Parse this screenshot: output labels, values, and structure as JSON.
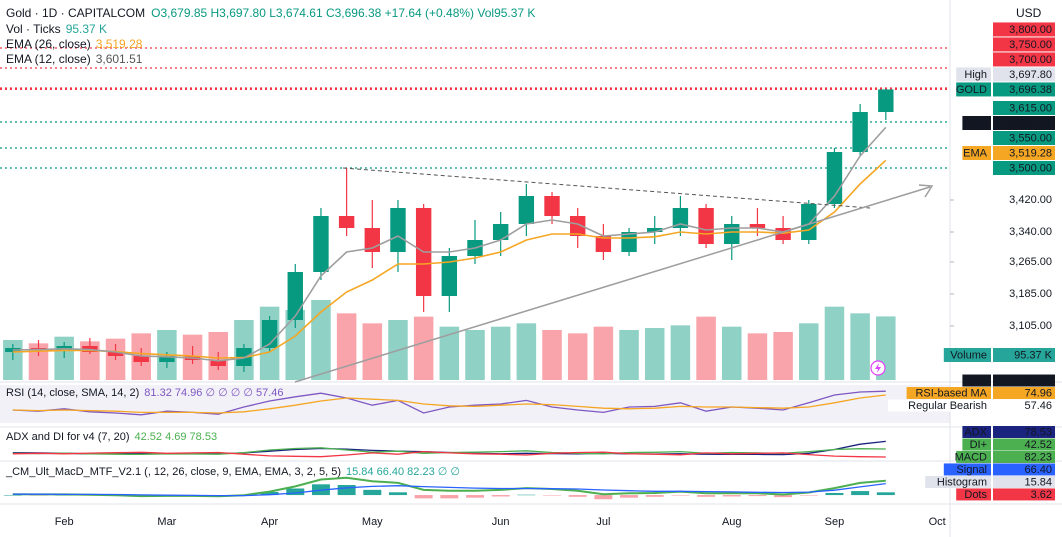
{
  "chart_data": [
    {
      "type": "candlestick",
      "title": "Gold · 1D · CAPITALCOM",
      "ohlc": "O3,679.85 H3,697.80 L3,674.61 C3,696.38 +17.64 (+0.48%) Vol95.37 K",
      "currency": "USD",
      "categories": [
        null,
        null,
        "Feb",
        null,
        null,
        null,
        "Mar",
        null,
        null,
        null,
        "Apr",
        null,
        null,
        null,
        "May",
        null,
        null,
        null,
        null,
        "Jun",
        null,
        null,
        null,
        "Jul",
        null,
        null,
        null,
        null,
        "Aug",
        null,
        null,
        null,
        "Sep",
        null,
        null,
        null,
        "Oct"
      ],
      "open": [
        3040,
        3050,
        3045,
        3055,
        3040,
        3030,
        3015,
        3030,
        3020,
        3005,
        3050,
        3120,
        3240,
        3380,
        3350,
        3290,
        3400,
        3180,
        3280,
        3320,
        3360,
        3430,
        3380,
        3330,
        3290,
        3340,
        3350,
        3400,
        3310,
        3360,
        3350,
        3320,
        3410,
        3540,
        3640,
        null,
        null
      ],
      "high": [
        3060,
        3070,
        3065,
        3075,
        3060,
        3050,
        3040,
        3055,
        3040,
        3060,
        3130,
        3260,
        3400,
        3500,
        3420,
        3420,
        3410,
        3300,
        3370,
        3390,
        3460,
        3440,
        3400,
        3360,
        3350,
        3380,
        3430,
        3410,
        3380,
        3400,
        3380,
        3420,
        3550,
        3660,
        3697.8,
        null,
        null
      ],
      "low": [
        3020,
        3030,
        3025,
        3035,
        3020,
        3005,
        3000,
        3010,
        2995,
        2990,
        3040,
        3100,
        3220,
        3330,
        3250,
        3240,
        3140,
        3140,
        3260,
        3280,
        3330,
        3360,
        3300,
        3270,
        3280,
        3310,
        3330,
        3300,
        3270,
        3330,
        3310,
        3310,
        3400,
        3530,
        3620,
        null,
        null
      ],
      "close": [
        3050,
        3045,
        3055,
        3040,
        3030,
        3015,
        3030,
        3020,
        3005,
        3050,
        3120,
        3240,
        3380,
        3350,
        3290,
        3400,
        3180,
        3280,
        3320,
        3360,
        3430,
        3380,
        3330,
        3290,
        3340,
        3350,
        3400,
        3310,
        3360,
        3350,
        3320,
        3410,
        3540,
        3640,
        3696.38,
        null,
        null
      ],
      "up_color": "#089981",
      "down_color": "#f23645",
      "volume": {
        "name": "Vol · Ticks",
        "values": [
          60,
          55,
          65,
          58,
          62,
          70,
          75,
          68,
          72,
          90,
          110,
          105,
          120,
          100,
          85,
          90,
          95,
          80,
          75,
          80,
          85,
          75,
          70,
          80,
          75,
          78,
          82,
          95,
          80,
          70,
          72,
          85,
          110,
          100,
          95.37,
          null,
          null
        ],
        "badge": {
          "name": "Volume",
          "label": "95.37 K",
          "color": "#26a69a"
        }
      },
      "series": [
        {
          "name": "EMA (26, close)",
          "badge_name": "EMA",
          "color": "#f5a623",
          "values": [
            3040,
            3042,
            3044,
            3044,
            3041,
            3036,
            3033,
            3030,
            3025,
            3026,
            3040,
            3080,
            3140,
            3190,
            3220,
            3260,
            3260,
            3265,
            3275,
            3290,
            3320,
            3335,
            3335,
            3325,
            3325,
            3328,
            3340,
            3335,
            3340,
            3340,
            3337,
            3345,
            3390,
            3460,
            3519.28,
            null,
            null
          ],
          "value_labels": [
            null,
            null,
            null,
            null,
            null,
            null,
            null,
            null,
            null,
            null,
            null,
            null,
            null,
            null,
            null,
            null,
            null,
            null,
            null,
            null,
            null,
            null,
            null,
            null,
            null,
            null,
            null,
            null,
            null,
            null,
            null,
            null,
            null,
            null,
            "3,519.28",
            null,
            null
          ]
        },
        {
          "name": "EMA (12, close)",
          "badge_name": "EMA",
          "color": "#9e9e9e",
          "badge_color": "#131722",
          "values": [
            3045,
            3046,
            3048,
            3046,
            3040,
            3030,
            3028,
            3025,
            3018,
            3025,
            3060,
            3130,
            3230,
            3290,
            3300,
            3330,
            3290,
            3290,
            3300,
            3320,
            3360,
            3370,
            3360,
            3330,
            3335,
            3340,
            3360,
            3345,
            3350,
            3350,
            3340,
            3360,
            3430,
            3530,
            3601.51,
            null,
            null
          ],
          "value_labels": [
            null,
            null,
            null,
            null,
            null,
            null,
            null,
            null,
            null,
            null,
            null,
            null,
            null,
            null,
            null,
            null,
            null,
            null,
            null,
            null,
            null,
            null,
            null,
            null,
            null,
            null,
            null,
            null,
            null,
            null,
            null,
            null,
            null,
            null,
            "3,601.51",
            null,
            null
          ]
        }
      ],
      "price_levels": [
        {
          "value": 3800,
          "label": "3,800.00",
          "color": "#f23645"
        },
        {
          "value": 3750,
          "label": "3,750.00",
          "color": "#f23645"
        },
        {
          "value": 3700,
          "label": "3,700.00",
          "color": "#f23645"
        },
        {
          "name": "High",
          "value": 3697.8,
          "label": "3,697.80",
          "color": "#e0e3eb"
        },
        {
          "name": "GOLD",
          "value": 3696.38,
          "label": "3,696.38",
          "color": "#089981"
        },
        {
          "value": 3615,
          "label": "3,615.00",
          "color": "#089981"
        },
        {
          "value": 3550,
          "label": "3,550.00",
          "color": "#089981"
        },
        {
          "value": 3500,
          "label": "3,500.00",
          "color": "#089981"
        }
      ],
      "ylim": [
        2970,
        3920
      ],
      "yticks": [
        {
          "value": 3105,
          "label": "3,105.00"
        },
        {
          "value": 3185,
          "label": "3,185.00"
        },
        {
          "value": 3265,
          "label": "3,265.00"
        },
        {
          "value": 3340,
          "label": "3,340.00"
        },
        {
          "value": 3420,
          "label": "3,420.00"
        }
      ],
      "grid": false
    },
    {
      "type": "line",
      "title": "RSI (14, close, SMA, 14, 2)",
      "title_values": "81.32 74.96 ∅ ∅ ∅ ∅ 57.46",
      "ylim": [
        30,
        90
      ],
      "series": [
        {
          "name": "RSI",
          "color": "#7e57c2",
          "badge_color": "#131722",
          "values": [
            50,
            48,
            52,
            47,
            45,
            42,
            48,
            46,
            43,
            55,
            65,
            72,
            78,
            70,
            58,
            66,
            45,
            55,
            58,
            60,
            66,
            55,
            50,
            46,
            55,
            56,
            62,
            48,
            55,
            53,
            50,
            62,
            75,
            80,
            81.32,
            null,
            null
          ]
        },
        {
          "name": "RSI-based MA",
          "color": "#f5a623",
          "values": [
            50,
            49,
            50,
            49,
            48,
            46,
            46,
            46,
            45,
            47,
            52,
            58,
            65,
            70,
            68,
            66,
            60,
            57,
            56,
            58,
            60,
            59,
            56,
            53,
            52,
            53,
            56,
            55,
            55,
            54,
            53,
            55,
            62,
            70,
            74.96,
            null,
            null
          ]
        }
      ],
      "extra_badges": [
        {
          "name": "Regular Bearish",
          "value": 57.46,
          "color": "#ffffff"
        }
      ]
    },
    {
      "type": "line",
      "title": "ADX and DI for v4 (7, 20)",
      "title_values": "42.52 4.69 78.53",
      "ylim": [
        0,
        85
      ],
      "series": [
        {
          "name": "ADX",
          "color": "#1a237e",
          "values": [
            25,
            24,
            22,
            20,
            20,
            22,
            21,
            20,
            21,
            24,
            32,
            40,
            45,
            42,
            36,
            32,
            30,
            26,
            22,
            20,
            22,
            21,
            20,
            22,
            20,
            19,
            20,
            18,
            17,
            17,
            16,
            22,
            40,
            65,
            78.53,
            null,
            null
          ]
        },
        {
          "name": "DI+",
          "color": "#4caf50",
          "values": [
            22,
            21,
            23,
            20,
            18,
            17,
            20,
            19,
            18,
            25,
            38,
            45,
            48,
            38,
            28,
            32,
            22,
            26,
            28,
            30,
            34,
            26,
            22,
            20,
            26,
            27,
            30,
            22,
            26,
            24,
            22,
            30,
            40,
            44,
            42.52,
            null,
            null
          ]
        },
        {
          "name": "DI-",
          "color": "#f23645",
          "values": [
            20,
            22,
            20,
            23,
            25,
            27,
            22,
            24,
            26,
            18,
            10,
            8,
            6,
            14,
            24,
            18,
            30,
            24,
            20,
            18,
            14,
            22,
            26,
            28,
            20,
            18,
            15,
            24,
            20,
            22,
            24,
            16,
            9,
            6,
            4.69,
            null,
            null
          ]
        }
      ]
    },
    {
      "type": "line",
      "title": "_CM_Ult_MacD_MTF_V2.1 (, 12, 26, close, 9, EMA, EMA, 3, 2, 5, 5)",
      "title_values": "15.84 66.40 82.23 ∅ ∅",
      "ylim": [
        -40,
        110
      ],
      "series": [
        {
          "name": "Histogram",
          "type": "bar",
          "color": "#26a69a",
          "negative_color": "#f7a1a8",
          "badge_color": "#e0e3eb",
          "values": [
            0,
            -1,
            0,
            -2,
            -4,
            -7,
            -4,
            -3,
            -4,
            2,
            18,
            38,
            62,
            58,
            30,
            16,
            -19,
            -19,
            -15,
            -8,
            2,
            -2,
            -10,
            -24,
            -15,
            -10,
            -2,
            -10,
            -8,
            -6,
            -12,
            -2,
            12,
            23,
            15.84,
            null,
            null
          ]
        },
        {
          "name": "MACD",
          "color": "#4caf50",
          "values": [
            5,
            4,
            4,
            2,
            -1,
            -6,
            -5,
            -5,
            -7,
            -1,
            20,
            50,
            90,
            100,
            80,
            70,
            30,
            25,
            25,
            30,
            40,
            35,
            25,
            5,
            10,
            12,
            20,
            10,
            10,
            10,
            3,
            15,
            40,
            70,
            82.23,
            null,
            null
          ]
        },
        {
          "name": "Signal",
          "color": "#2962ff",
          "values": [
            5,
            5,
            4,
            4,
            3,
            1,
            -1,
            -2,
            -3,
            -3,
            2,
            12,
            28,
            42,
            50,
            54,
            49,
            44,
            40,
            38,
            38,
            37,
            35,
            29,
            25,
            22,
            22,
            20,
            18,
            16,
            15,
            17,
            28,
            47,
            66.4,
            null,
            null
          ],
          "value_labels": [
            null,
            null,
            null,
            null,
            null,
            null,
            null,
            null,
            null,
            null,
            null,
            null,
            null,
            null,
            null,
            null,
            null,
            null,
            null,
            null,
            null,
            null,
            null,
            null,
            null,
            null,
            null,
            null,
            null,
            null,
            null,
            null,
            null,
            null,
            "66.40",
            null,
            null
          ]
        }
      ],
      "extra_badges": [
        {
          "name": "Dots",
          "value": 3.62,
          "color": "#f23645"
        }
      ]
    }
  ]
}
